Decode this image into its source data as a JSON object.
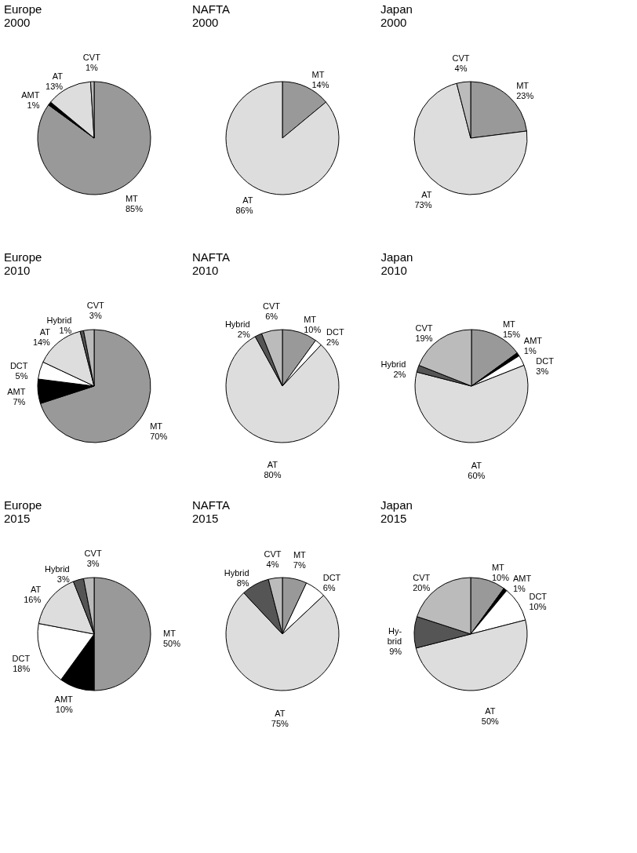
{
  "chart_data": [
    {
      "type": "pie",
      "title": "Europe 2000",
      "categories": [
        "MT",
        "AMT",
        "AT",
        "CVT"
      ],
      "values": [
        85,
        1,
        13,
        1
      ],
      "value_labels": [
        "85%",
        "1%",
        "13%",
        "1%"
      ],
      "colors": [
        "#999999",
        "#000000",
        "#dddddd",
        "#bbbbbb"
      ]
    },
    {
      "type": "pie",
      "title": "NAFTA 2000",
      "categories": [
        "MT",
        "AT"
      ],
      "values": [
        14,
        86
      ],
      "value_labels": [
        "14%",
        "86%"
      ],
      "colors": [
        "#999999",
        "#dddddd"
      ]
    },
    {
      "type": "pie",
      "title": "Japan 2000",
      "categories": [
        "MT",
        "AT",
        "CVT"
      ],
      "values": [
        23,
        73,
        4
      ],
      "value_labels": [
        "23%",
        "73%",
        "4%"
      ],
      "colors": [
        "#999999",
        "#dddddd",
        "#bbbbbb"
      ]
    },
    {
      "type": "pie",
      "title": "Europe 2010",
      "categories": [
        "MT",
        "AMT",
        "DCT",
        "AT",
        "Hybrid",
        "CVT"
      ],
      "values": [
        70,
        7,
        5,
        14,
        1,
        3
      ],
      "value_labels": [
        "70%",
        "7%",
        "5%",
        "14%",
        "1%",
        "3%"
      ],
      "colors": [
        "#999999",
        "#000000",
        "#ffffff",
        "#dddddd",
        "#555555",
        "#bbbbbb"
      ]
    },
    {
      "type": "pie",
      "title": "NAFTA 2010",
      "categories": [
        "MT",
        "DCT",
        "AT",
        "Hybrid",
        "CVT"
      ],
      "values": [
        10,
        2,
        80,
        2,
        6
      ],
      "value_labels": [
        "10%",
        "2%",
        "80%",
        "2%",
        "6%"
      ],
      "colors": [
        "#999999",
        "#ffffff",
        "#dddddd",
        "#555555",
        "#bbbbbb"
      ]
    },
    {
      "type": "pie",
      "title": "Japan 2010",
      "categories": [
        "MT",
        "AMT",
        "DCT",
        "AT",
        "Hybrid",
        "CVT"
      ],
      "values": [
        15,
        1,
        3,
        60,
        2,
        19
      ],
      "value_labels": [
        "15%",
        "1%",
        "3%",
        "60%",
        "2%",
        "19%"
      ],
      "colors": [
        "#999999",
        "#000000",
        "#ffffff",
        "#dddddd",
        "#555555",
        "#bbbbbb"
      ]
    },
    {
      "type": "pie",
      "title": "Europe 2015",
      "categories": [
        "MT",
        "AMT",
        "DCT",
        "AT",
        "Hybrid",
        "CVT"
      ],
      "values": [
        50,
        10,
        18,
        16,
        3,
        3
      ],
      "value_labels": [
        "50%",
        "10%",
        "18%",
        "16%",
        "3%",
        "3%"
      ],
      "colors": [
        "#999999",
        "#000000",
        "#ffffff",
        "#dddddd",
        "#555555",
        "#bbbbbb"
      ]
    },
    {
      "type": "pie",
      "title": "NAFTA 2015",
      "categories": [
        "MT",
        "DCT",
        "AT",
        "Hybrid",
        "CVT"
      ],
      "values": [
        7,
        6,
        75,
        8,
        4
      ],
      "value_labels": [
        "7%",
        "6%",
        "75%",
        "8%",
        "4%"
      ],
      "colors": [
        "#999999",
        "#ffffff",
        "#dddddd",
        "#555555",
        "#bbbbbb"
      ]
    },
    {
      "type": "pie",
      "title": "Japan 2015",
      "categories": [
        "MT",
        "AMT",
        "DCT",
        "AT",
        "Hy-\nbrid",
        "CVT"
      ],
      "values": [
        10,
        1,
        10,
        50,
        9,
        20
      ],
      "value_labels": [
        "10%",
        "1%",
        "10%",
        "50%",
        "9%",
        "20%"
      ],
      "colors": [
        "#999999",
        "#000000",
        "#ffffff",
        "#dddddd",
        "#555555",
        "#bbbbbb"
      ]
    }
  ]
}
